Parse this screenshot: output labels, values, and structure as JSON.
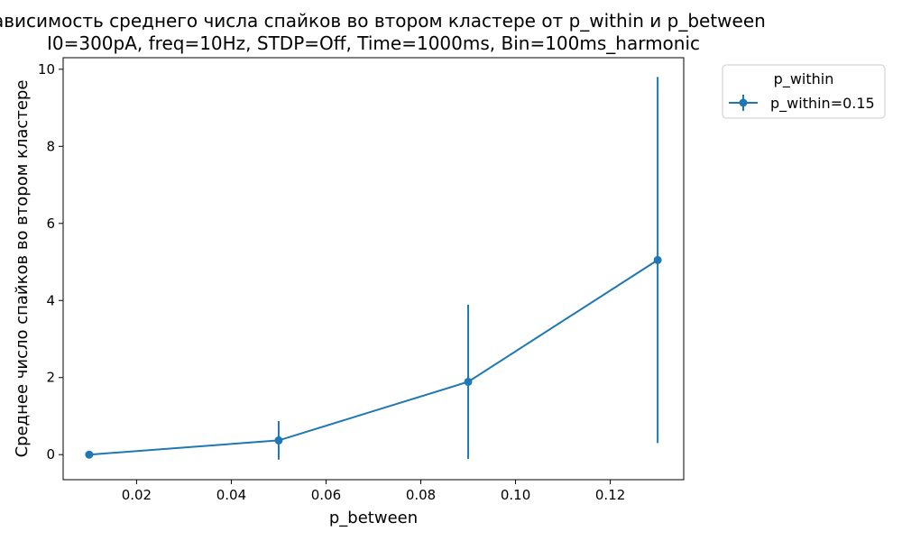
{
  "chart_data": {
    "type": "line",
    "title_line1": "Зависимость среднего числа спайков во втором кластере от p_within и p_between",
    "title_line2": "I0=300pA, freq=10Hz, STDP=Off, Time=1000ms, Bin=100ms_harmonic",
    "xlabel": "p_between",
    "ylabel": "Среднее число спайков во втором кластере",
    "xlim": [
      0.0045,
      0.1355
    ],
    "ylim": [
      -0.65,
      10.3
    ],
    "xticks": [
      0.02,
      0.04,
      0.06,
      0.08,
      0.1,
      0.12
    ],
    "xtick_labels": [
      "0.02",
      "0.04",
      "0.06",
      "0.08",
      "0.10",
      "0.12"
    ],
    "yticks": [
      0,
      2,
      4,
      6,
      8,
      10
    ],
    "ytick_labels": [
      "0",
      "2",
      "4",
      "6",
      "8",
      "10"
    ],
    "grid": false,
    "legend": {
      "title": "p_within",
      "placement": "outside-top-right"
    },
    "series": [
      {
        "name": "p_within=0.15",
        "color": "#1f77b4",
        "x": [
          0.01,
          0.05,
          0.09,
          0.13
        ],
        "y": [
          0.0,
          0.37,
          1.89,
          5.05
        ],
        "yerr": [
          0.0,
          0.5,
          2.0,
          4.75
        ]
      }
    ]
  }
}
